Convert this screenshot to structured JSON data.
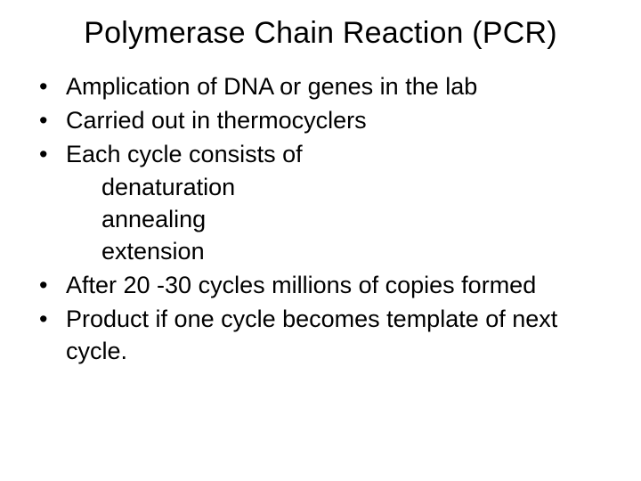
{
  "slide": {
    "title": "Polymerase Chain Reaction (PCR)",
    "title_fontsize": 34,
    "body_fontsize": 27,
    "background_color": "#ffffff",
    "text_color": "#000000",
    "bullets": [
      {
        "text": "Amplication of DNA or genes in the lab"
      },
      {
        "text": "Carried out in thermocyclers"
      },
      {
        "text": "Each cycle consists of",
        "subitems": [
          "denaturation",
          "annealing",
          "extension"
        ]
      },
      {
        "text": "After 20 -30 cycles millions of copies formed"
      },
      {
        "text": "Product if one cycle becomes template of next cycle."
      }
    ]
  }
}
